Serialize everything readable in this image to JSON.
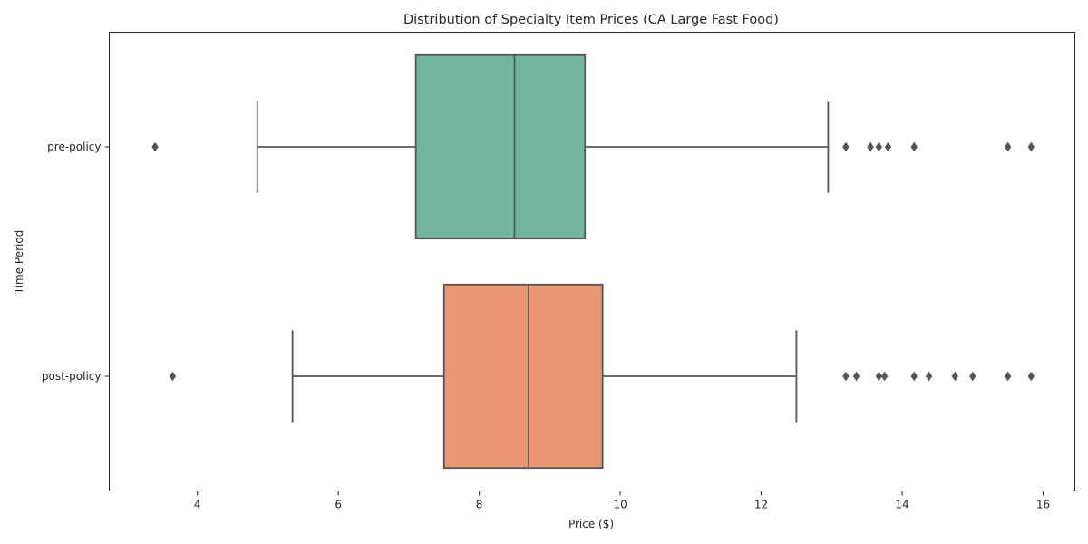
{
  "chart_data": {
    "type": "boxplot",
    "orientation": "horizontal",
    "title": "Distribution of Specialty Item Prices (CA Large Fast Food)",
    "xlabel": "Price ($)",
    "ylabel": "Time Period",
    "xlim": [
      2.75,
      16.45
    ],
    "xticks": [
      4,
      6,
      8,
      10,
      12,
      14,
      16
    ],
    "grid": false,
    "categories": [
      "pre-policy",
      "post-policy"
    ],
    "series": [
      {
        "category": "pre-policy",
        "color": "#73b6a0",
        "whisker_low": 4.85,
        "q1": 7.1,
        "median": 8.5,
        "q3": 9.5,
        "whisker_high": 12.95,
        "outliers": [
          3.4,
          13.2,
          13.55,
          13.67,
          13.8,
          14.17,
          15.5,
          15.83
        ]
      },
      {
        "category": "post-policy",
        "color": "#e89673",
        "whisker_low": 5.35,
        "q1": 7.5,
        "median": 8.7,
        "q3": 9.75,
        "whisker_high": 12.5,
        "outliers": [
          3.65,
          13.2,
          13.35,
          13.67,
          13.75,
          14.17,
          14.38,
          14.75,
          15.0,
          15.5,
          15.83
        ]
      }
    ]
  }
}
